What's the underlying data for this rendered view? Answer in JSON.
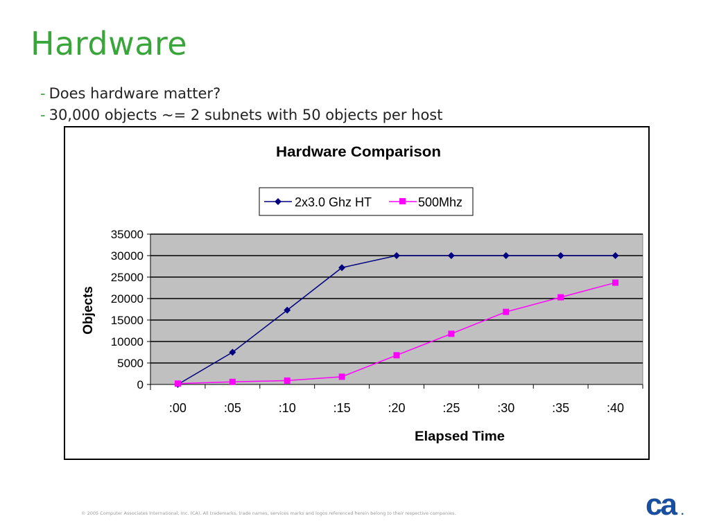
{
  "slide": {
    "title": "Hardware",
    "bullets": [
      {
        "dash": "-",
        "text": "Does hardware matter?"
      },
      {
        "dash": "-",
        "text": "30,000 objects ~= 2 subnets with 50 objects per host"
      }
    ],
    "footer": "© 2005 Computer Associates International, Inc. (CA). All trademarks, trade names, services marks and logos referenced herein belong to their respective companies.",
    "logo_text": "ca",
    "logo_dot": "."
  },
  "colors": {
    "title_green": "#3aa53a",
    "plot_bg": "#c0c0c0",
    "series1": "#000080",
    "series2": "#ff00ff",
    "logo_blue": "#1a4fa0"
  },
  "chart_data": {
    "type": "line",
    "title": "Hardware Comparison",
    "xlabel": "Elapsed Time",
    "ylabel": "Objects",
    "categories": [
      ":00",
      ":05",
      ":10",
      ":15",
      ":20",
      ":25",
      ":30",
      ":35",
      ":40"
    ],
    "ylim": [
      0,
      35000
    ],
    "yticks": [
      "35000",
      "30000",
      "25000",
      "20000",
      "15000",
      "10000",
      "5000",
      "0"
    ],
    "grid": true,
    "legend": "top-center",
    "series": [
      {
        "name": "2x3.0 Ghz HT",
        "marker": "diamond",
        "color": "#000080",
        "values": [
          0,
          7500,
          17300,
          27200,
          30000,
          30000,
          30000,
          30000,
          30000
        ]
      },
      {
        "name": "500Mhz",
        "marker": "square",
        "color": "#ff00ff",
        "values": [
          200,
          600,
          900,
          1800,
          6800,
          11800,
          16900,
          20300,
          23700
        ]
      }
    ]
  }
}
